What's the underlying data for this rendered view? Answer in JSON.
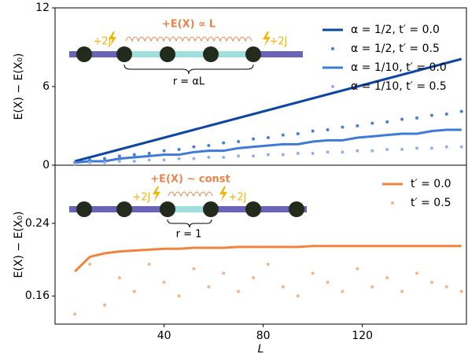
{
  "chart_data": [
    {
      "type": "line",
      "ylabel": "E(X) − E(X₀)",
      "x": [
        4,
        10,
        16,
        22,
        28,
        34,
        40,
        46,
        52,
        58,
        64,
        70,
        76,
        82,
        88,
        94,
        100,
        106,
        112,
        118,
        124,
        130,
        136,
        142,
        148,
        154,
        160
      ],
      "series": [
        {
          "name": "α = 1/2, t′ = 0.0",
          "color": "#0d47a1",
          "style": "line",
          "values": [
            0.3,
            0.6,
            0.9,
            1.2,
            1.5,
            1.8,
            2.1,
            2.4,
            2.7,
            3.0,
            3.3,
            3.6,
            3.9,
            4.2,
            4.5,
            4.8,
            5.1,
            5.4,
            5.7,
            6.0,
            6.3,
            6.6,
            6.9,
            7.2,
            7.5,
            7.8,
            8.1
          ]
        },
        {
          "name": "α = 1/2, t′ = 0.5",
          "color": "#4a7fd4",
          "style": "dots",
          "values": [
            0.2,
            0.4,
            0.5,
            0.7,
            0.8,
            0.9,
            1.1,
            1.2,
            1.4,
            1.5,
            1.7,
            1.8,
            2.0,
            2.1,
            2.3,
            2.4,
            2.6,
            2.7,
            2.9,
            3.0,
            3.2,
            3.3,
            3.5,
            3.6,
            3.8,
            3.9,
            4.1
          ]
        },
        {
          "name": "α = 1/10, t′ = 0.0",
          "color": "#3f7bd6",
          "style": "line",
          "values": [
            0.2,
            0.3,
            0.3,
            0.5,
            0.6,
            0.7,
            0.8,
            0.8,
            1.0,
            1.1,
            1.1,
            1.3,
            1.4,
            1.5,
            1.6,
            1.6,
            1.8,
            1.9,
            1.9,
            2.1,
            2.2,
            2.3,
            2.4,
            2.4,
            2.6,
            2.7,
            2.7
          ]
        },
        {
          "name": "α = 1/10, t′ = 0.5",
          "color": "#93b3e8",
          "style": "dots",
          "values": [
            0.1,
            0.2,
            0.2,
            0.3,
            0.3,
            0.4,
            0.4,
            0.5,
            0.5,
            0.6,
            0.6,
            0.7,
            0.7,
            0.8,
            0.8,
            0.9,
            0.9,
            1.0,
            1.0,
            1.1,
            1.1,
            1.2,
            1.2,
            1.3,
            1.3,
            1.4,
            1.4
          ]
        }
      ],
      "xlim": [
        -4,
        162
      ],
      "ylim": [
        0,
        12
      ],
      "yticks": [
        0,
        6,
        12
      ],
      "annotations": [
        "+E(X) ∝ L",
        "+2J",
        "+2J",
        "r = αL"
      ]
    },
    {
      "type": "line",
      "xlabel": "L",
      "ylabel": "E(X) − E(X₀)",
      "x": [
        4,
        10,
        16,
        22,
        28,
        34,
        40,
        46,
        52,
        58,
        64,
        70,
        76,
        82,
        88,
        94,
        100,
        106,
        112,
        118,
        124,
        130,
        136,
        142,
        148,
        154,
        160
      ],
      "series": [
        {
          "name": "t′ = 0.0",
          "color": "#f0843c",
          "style": "line",
          "values": [
            0.187,
            0.203,
            0.207,
            0.209,
            0.21,
            0.211,
            0.212,
            0.212,
            0.213,
            0.213,
            0.213,
            0.214,
            0.214,
            0.214,
            0.214,
            0.214,
            0.215,
            0.215,
            0.215,
            0.215,
            0.215,
            0.215,
            0.215,
            0.215,
            0.215,
            0.215,
            0.215
          ]
        },
        {
          "name": "t′ = 0.5",
          "color": "#f4b58a",
          "style": "dots",
          "values": [
            0.14,
            0.195,
            0.15,
            0.18,
            0.165,
            0.195,
            0.175,
            0.16,
            0.19,
            0.17,
            0.185,
            0.165,
            0.18,
            0.195,
            0.17,
            0.16,
            0.185,
            0.175,
            0.165,
            0.19,
            0.17,
            0.18,
            0.165,
            0.185,
            0.175,
            0.17,
            0.165
          ]
        }
      ],
      "xlim": [
        -4,
        162
      ],
      "xticks": [
        40,
        80,
        120
      ],
      "ylim": [
        0.129,
        0.304
      ],
      "yticks": [
        0.16,
        0.24
      ],
      "annotations": [
        "+E(X) ~ const",
        "+2J",
        "+2J",
        "r = 1"
      ]
    }
  ]
}
